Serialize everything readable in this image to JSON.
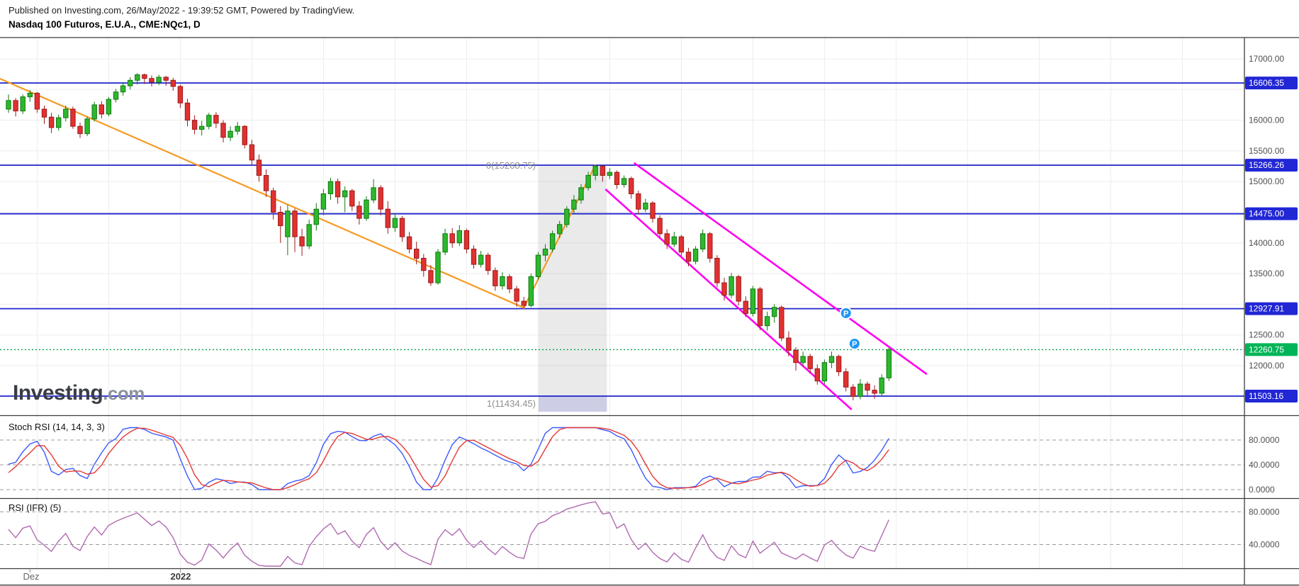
{
  "header": {
    "published_line": "Published on Investing.com, 26/May/2022 - 19:39:52 GMT, Powered by TradingView.",
    "instrument_line": "Nasdaq 100 Futuros, E.U.A., CME:NQc1, D"
  },
  "watermark": {
    "brand": "Investing",
    "suffix": ".com"
  },
  "chart_data": {
    "type": "candlestick",
    "title": "Nasdaq 100 Futuros, E.U.A., CME:NQc1, D",
    "timeframe": "D",
    "last_price": 12260.75,
    "price_axis_ticks": [
      [
        17000,
        "17000.00"
      ],
      [
        16000,
        "16000.00"
      ],
      [
        15500,
        "15500.00"
      ],
      [
        15000,
        "15000.00"
      ],
      [
        14000,
        "14000.00"
      ],
      [
        13500,
        "13500.00"
      ],
      [
        12500,
        "12500.00"
      ],
      [
        12000,
        "12000.00"
      ]
    ],
    "levels": [
      {
        "label": "16606.35",
        "price": 16606.35,
        "type": "line"
      },
      {
        "label": "15266.26",
        "price": 15266.26,
        "type": "line"
      },
      {
        "label": "14475.00",
        "price": 14475.0,
        "type": "line"
      },
      {
        "label": "12927.91",
        "price": 12927.91,
        "type": "line"
      },
      {
        "label": "11503.16",
        "price": 11503.16,
        "type": "line"
      },
      {
        "label": "12260.75",
        "price": 12260.75,
        "type": "last"
      }
    ],
    "fib": {
      "top_label": "0(15268.75)",
      "bottom_label": "1(11434.45)",
      "top_price": 15268.75,
      "bottom_price": 11434.45,
      "box_day_start": 74.06,
      "box_day_end": 83.6
    },
    "trendlines": {
      "orange": [
        [
          -1.2,
          16677
        ],
        [
          72,
          12942
        ],
        [
          82,
          15268.75
        ]
      ],
      "channel": [
        [
          [
            83.4,
            14875
          ],
          [
            117.8,
            11284
          ]
        ],
        [
          [
            87.4,
            15303
          ],
          [
            128.3,
            11861
          ]
        ]
      ]
    },
    "markers": [
      {
        "label": "P",
        "day": 117,
        "price": 12855
      },
      {
        "label": "P",
        "day": 118.2,
        "price": 12358
      }
    ],
    "x_axis": {
      "labels": [
        {
          "text": "Dez",
          "day": 3
        },
        {
          "text": "2022",
          "day": 24
        }
      ]
    },
    "panes": {
      "stoch": {
        "title": "Stoch RSI (14, 14, 3, 3)",
        "ticks": [
          [
            80,
            "80.0000"
          ],
          [
            40,
            "40.0000"
          ],
          [
            0,
            "0.0000"
          ]
        ]
      },
      "rsi": {
        "title": "RSI (IFR) (5)",
        "ticks": [
          [
            80,
            "80.0000"
          ],
          [
            40,
            "40.0000"
          ]
        ]
      }
    },
    "colors": {
      "level_line": "#1f24cc",
      "level_badge": "#2127d4",
      "last_badge": "#00b457",
      "last_line": "#00a14b",
      "up": "#2db82d",
      "up_border": "#117a11",
      "down": "#e03131",
      "down_border": "#9e1a1a",
      "orange": "#f59b22",
      "magenta": "#ff00f0",
      "stoch_k": "#3d5afe",
      "stoch_d": "#e53935",
      "rsi": "#b06ab0",
      "marker": "#2196f3"
    },
    "pre_closes": [
      15950,
      16050,
      15900,
      16100,
      16200,
      16150,
      16300,
      16250,
      16400,
      16350,
      16500,
      16450,
      16600,
      16550,
      16700,
      16765,
      16600,
      16650,
      16450,
      16350,
      16500,
      16400,
      16200,
      16100,
      16250,
      16150,
      15950,
      16420,
      15870,
      16020,
      16180,
      16100
    ],
    "candles": [
      [
        16180,
        16420,
        16120,
        16320
      ],
      [
        16320,
        16360,
        16060,
        16150
      ],
      [
        16150,
        16420,
        16100,
        16380
      ],
      [
        16380,
        16490,
        16300,
        16440
      ],
      [
        16440,
        16460,
        16120,
        16180
      ],
      [
        16180,
        16240,
        15940,
        16050
      ],
      [
        16050,
        16120,
        15790,
        15880
      ],
      [
        15880,
        16090,
        15830,
        16040
      ],
      [
        16040,
        16240,
        15980,
        16180
      ],
      [
        16180,
        16220,
        15860,
        15900
      ],
      [
        15900,
        15960,
        15710,
        15780
      ],
      [
        15780,
        16060,
        15740,
        16020
      ],
      [
        16020,
        16300,
        15980,
        16250
      ],
      [
        16250,
        16310,
        16030,
        16100
      ],
      [
        16100,
        16380,
        16060,
        16340
      ],
      [
        16340,
        16510,
        16290,
        16460
      ],
      [
        16460,
        16620,
        16400,
        16560
      ],
      [
        16560,
        16700,
        16500,
        16650
      ],
      [
        16650,
        16767,
        16580,
        16740
      ],
      [
        16740,
        16760,
        16590,
        16680
      ],
      [
        16680,
        16730,
        16550,
        16620
      ],
      [
        16620,
        16740,
        16570,
        16700
      ],
      [
        16700,
        16720,
        16560,
        16650
      ],
      [
        16650,
        16690,
        16480,
        16550
      ],
      [
        16550,
        16580,
        16200,
        16280
      ],
      [
        16280,
        16350,
        15900,
        16000
      ],
      [
        16000,
        16080,
        15770,
        15850
      ],
      [
        15850,
        15990,
        15750,
        15900
      ],
      [
        15900,
        16120,
        15850,
        16080
      ],
      [
        16080,
        16130,
        15870,
        15950
      ],
      [
        15950,
        16000,
        15640,
        15720
      ],
      [
        15720,
        15900,
        15660,
        15820
      ],
      [
        15820,
        15970,
        15760,
        15900
      ],
      [
        15900,
        15920,
        15540,
        15600
      ],
      [
        15600,
        15680,
        15260,
        15350
      ],
      [
        15350,
        15440,
        15000,
        15100
      ],
      [
        15100,
        15200,
        14750,
        14850
      ],
      [
        14850,
        14900,
        14380,
        14500
      ],
      [
        14500,
        14600,
        14000,
        14280
      ],
      [
        14100,
        14620,
        13800,
        14520
      ],
      [
        14520,
        14560,
        13850,
        14100
      ],
      [
        14100,
        14230,
        13790,
        13950
      ],
      [
        13950,
        14380,
        13900,
        14300
      ],
      [
        14300,
        14650,
        14200,
        14550
      ],
      [
        14550,
        14880,
        14450,
        14800
      ],
      [
        14800,
        15060,
        14700,
        15000
      ],
      [
        15000,
        15050,
        14640,
        14750
      ],
      [
        14750,
        14920,
        14500,
        14850
      ],
      [
        14850,
        14880,
        14520,
        14600
      ],
      [
        14600,
        14680,
        14300,
        14400
      ],
      [
        14400,
        14760,
        14360,
        14700
      ],
      [
        14700,
        15040,
        14650,
        14900
      ],
      [
        14900,
        14940,
        14450,
        14550
      ],
      [
        14550,
        14680,
        14150,
        14250
      ],
      [
        14250,
        14480,
        14180,
        14400
      ],
      [
        14400,
        14440,
        14020,
        14100
      ],
      [
        14100,
        14180,
        13830,
        13900
      ],
      [
        13900,
        14020,
        13650,
        13750
      ],
      [
        13750,
        13820,
        13450,
        13550
      ],
      [
        13550,
        13640,
        13300,
        13350
      ],
      [
        13350,
        13900,
        13320,
        13850
      ],
      [
        13850,
        14230,
        13800,
        14150
      ],
      [
        14150,
        14240,
        13920,
        14000
      ],
      [
        14000,
        14290,
        13950,
        14200
      ],
      [
        14200,
        14230,
        13830,
        13900
      ],
      [
        13900,
        13960,
        13580,
        13650
      ],
      [
        13650,
        13870,
        13600,
        13800
      ],
      [
        13800,
        13840,
        13480,
        13550
      ],
      [
        13550,
        13600,
        13220,
        13300
      ],
      [
        13300,
        13520,
        13240,
        13450
      ],
      [
        13450,
        13490,
        13180,
        13250
      ],
      [
        13250,
        13300,
        12960,
        13050
      ],
      [
        13050,
        13120,
        12942,
        12980
      ],
      [
        12980,
        13500,
        12950,
        13450
      ],
      [
        13450,
        13850,
        13400,
        13800
      ],
      [
        13800,
        13980,
        13700,
        13900
      ],
      [
        13900,
        14200,
        13850,
        14150
      ],
      [
        14150,
        14360,
        14080,
        14300
      ],
      [
        14300,
        14600,
        14250,
        14550
      ],
      [
        14550,
        14780,
        14480,
        14700
      ],
      [
        14700,
        14960,
        14640,
        14900
      ],
      [
        14900,
        15160,
        14850,
        15100
      ],
      [
        15100,
        15268,
        15020,
        15250
      ],
      [
        15250,
        15260,
        15000,
        15100
      ],
      [
        15100,
        15220,
        15040,
        15150
      ],
      [
        15150,
        15180,
        14880,
        14950
      ],
      [
        14950,
        15100,
        14900,
        15050
      ],
      [
        15050,
        15080,
        14720,
        14800
      ],
      [
        14800,
        14850,
        14470,
        14550
      ],
      [
        14550,
        14720,
        14500,
        14650
      ],
      [
        14650,
        14680,
        14330,
        14400
      ],
      [
        14400,
        14450,
        14070,
        14150
      ],
      [
        14150,
        14220,
        13900,
        13980
      ],
      [
        13980,
        14180,
        13930,
        14100
      ],
      [
        14100,
        14130,
        13780,
        13850
      ],
      [
        13850,
        13920,
        13620,
        13700
      ],
      [
        13700,
        13950,
        13650,
        13900
      ],
      [
        13900,
        14220,
        13850,
        14150
      ],
      [
        14150,
        14180,
        13680,
        13750
      ],
      [
        13750,
        13800,
        13280,
        13350
      ],
      [
        13350,
        13430,
        13060,
        13150
      ],
      [
        13150,
        13510,
        13100,
        13450
      ],
      [
        13450,
        13480,
        12980,
        13050
      ],
      [
        13050,
        13130,
        12790,
        12850
      ],
      [
        12850,
        13300,
        12800,
        13250
      ],
      [
        13250,
        13280,
        12580,
        12650
      ],
      [
        12650,
        12880,
        12570,
        12800
      ],
      [
        12800,
        13000,
        12700,
        12950
      ],
      [
        12950,
        12980,
        12400,
        12450
      ],
      [
        12450,
        12560,
        12150,
        12250
      ],
      [
        12250,
        12300,
        11920,
        12050
      ],
      [
        12050,
        12230,
        11990,
        12150
      ],
      [
        12150,
        12190,
        11880,
        11950
      ],
      [
        11950,
        12020,
        11690,
        11750
      ],
      [
        11750,
        12100,
        11700,
        12050
      ],
      [
        12050,
        12230,
        11960,
        12150
      ],
      [
        12150,
        12180,
        11830,
        11900
      ],
      [
        11900,
        11960,
        11580,
        11650
      ],
      [
        11650,
        11700,
        11434,
        11500
      ],
      [
        11500,
        11780,
        11450,
        11700
      ],
      [
        11700,
        11740,
        11510,
        11600
      ],
      [
        11600,
        11680,
        11460,
        11550
      ],
      [
        11550,
        11860,
        11500,
        11800
      ],
      [
        11800,
        12290,
        11750,
        12260.75
      ]
    ]
  }
}
